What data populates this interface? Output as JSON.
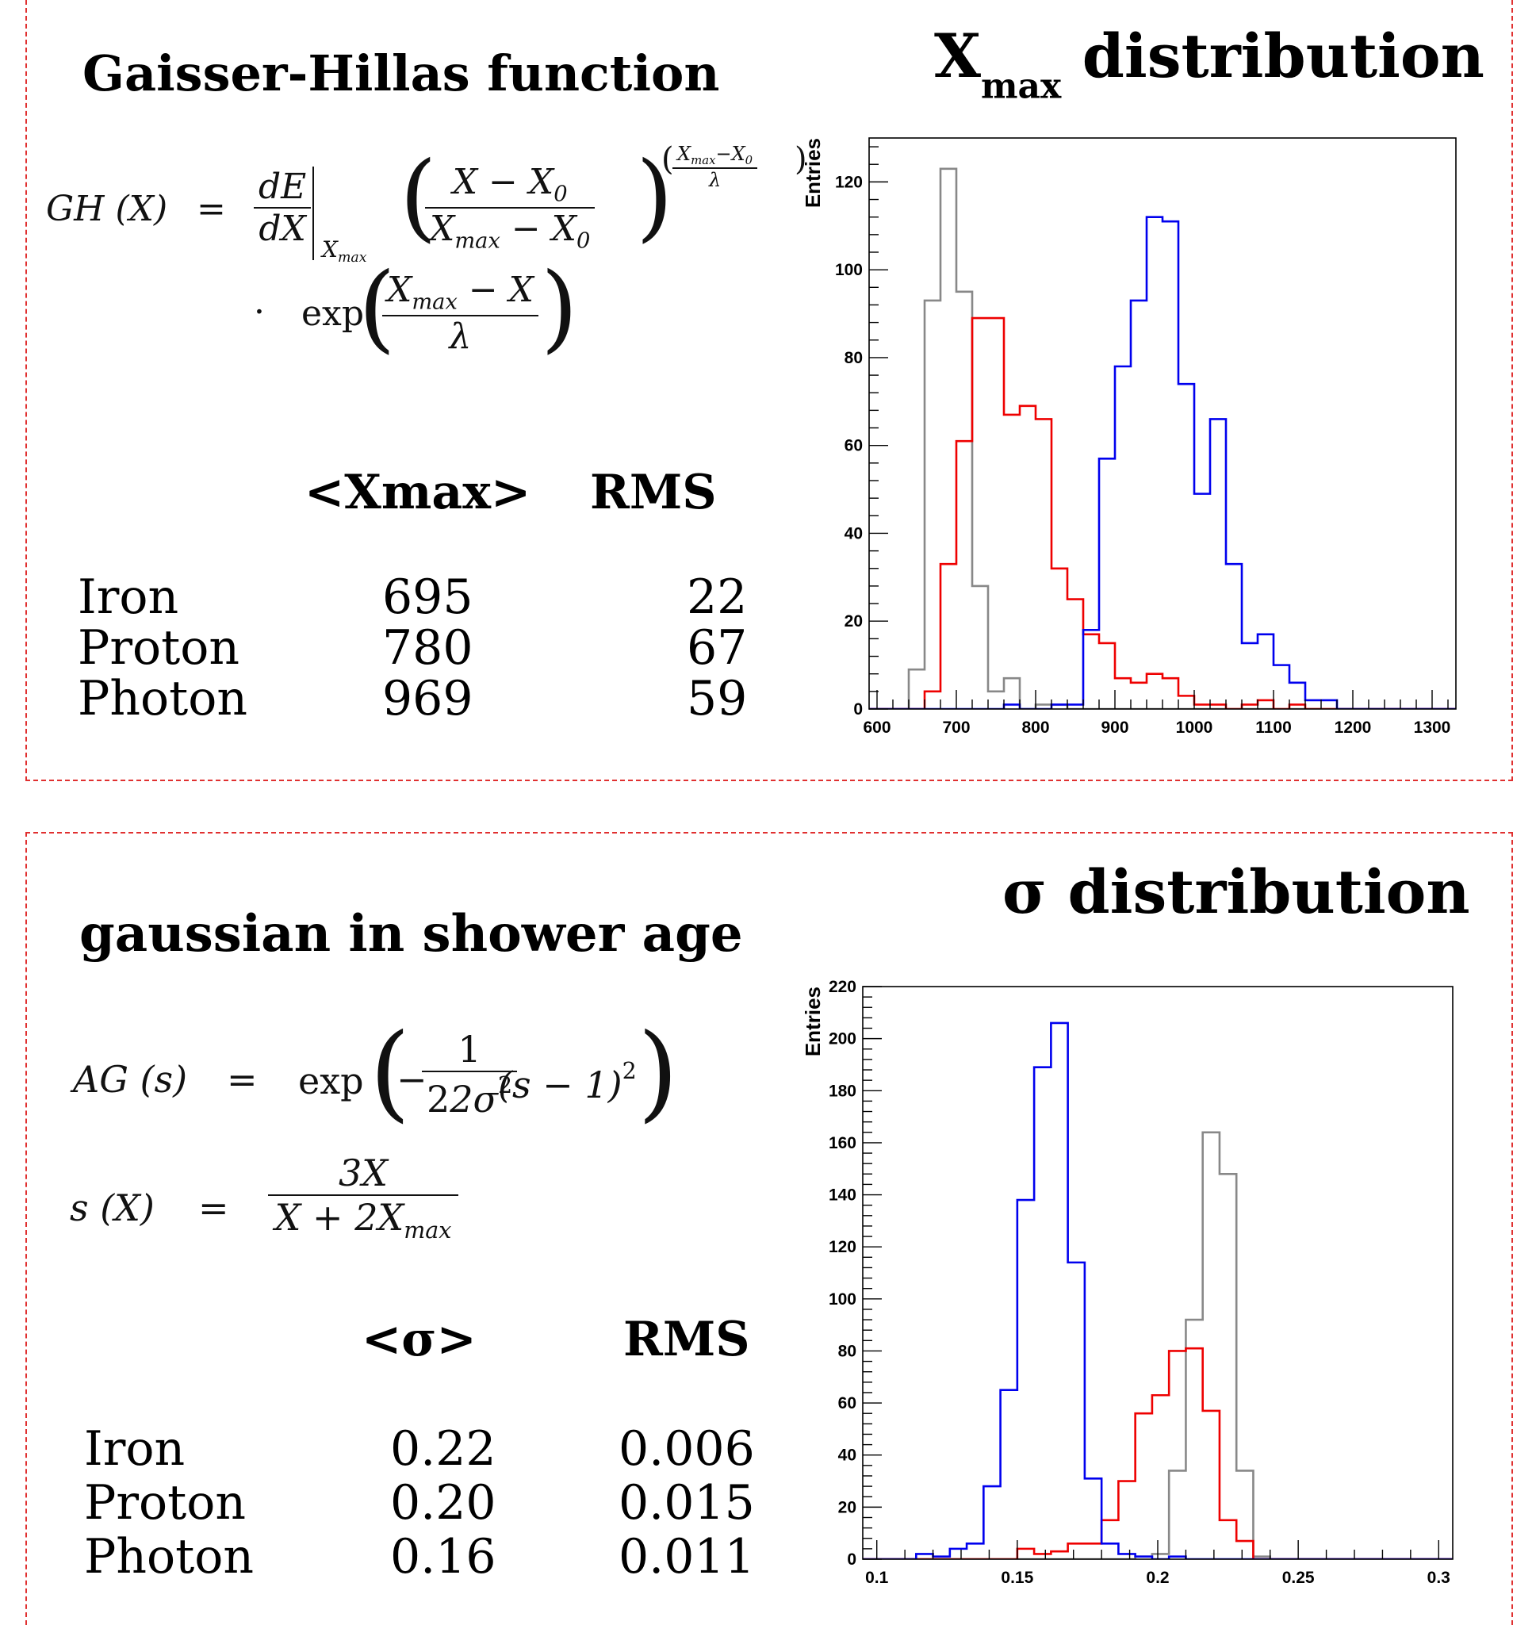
{
  "top": {
    "title": "Gaisser-Hillas function",
    "equation": {
      "lhs": "GH (X)",
      "eq": "=",
      "dE": "dE",
      "dX": "dX",
      "eval_sub": "X",
      "eval_sub2": "max",
      "num": "X − X",
      "num_sub": "0",
      "den": "X",
      "den_sub": "max",
      "den_tail": " − X",
      "den_tail_sub": "0",
      "exp_num": "X",
      "exp_num_sub": "max",
      "exp_num_tail": "−X",
      "exp_num_tail_sub": "0",
      "exp_den": "λ",
      "dot": "·",
      "exp": "exp",
      "e_num": "X",
      "e_num_sub": "max",
      "e_num_tail": " − X",
      "e_den": "λ"
    },
    "table": {
      "col1": "<Xmax>",
      "col2": "RMS",
      "rows": [
        {
          "name": "Iron",
          "mean": "695",
          "rms": "22"
        },
        {
          "name": "Proton",
          "mean": "780",
          "rms": "67"
        },
        {
          "name": "Photon",
          "mean": "969",
          "rms": "59"
        }
      ]
    },
    "chart_title_main": "X",
    "chart_title_sub": "max",
    "chart_title_tail": " distribution"
  },
  "bottom": {
    "title": "gaussian in shower age",
    "eq1": {
      "lhs": "AG (s)",
      "eq": "=",
      "exp": "exp",
      "minus": "−",
      "num": "1",
      "den": "2σ",
      "den_sup": "2",
      "tail": "(s − 1)",
      "tail_sup": "2"
    },
    "eq2": {
      "lhs": "s (X)",
      "eq": "=",
      "num": "3X",
      "den": "X + 2X",
      "den_sub": "max"
    },
    "table": {
      "col1": "<σ>",
      "col2": "RMS",
      "rows": [
        {
          "name": "Iron",
          "mean": "0.22",
          "rms": "0.006"
        },
        {
          "name": "Proton",
          "mean": "0.20",
          "rms": "0.015"
        },
        {
          "name": "Photon",
          "mean": "0.16",
          "rms": "0.011"
        }
      ]
    },
    "chart_title": "σ distribution"
  },
  "chart_data": [
    {
      "type": "histogram",
      "ylabel": "Entries",
      "xlim": [
        590,
        1330
      ],
      "ylim": [
        0,
        130
      ],
      "xticks": [
        600,
        700,
        800,
        900,
        1000,
        1100,
        1200,
        1300
      ],
      "yticks": [
        0,
        20,
        40,
        60,
        80,
        100,
        120
      ],
      "bin_edges": [
        580,
        600,
        620,
        640,
        660,
        680,
        700,
        720,
        740,
        760,
        780,
        800,
        820,
        840,
        860,
        880,
        900,
        920,
        940,
        960,
        980,
        1000,
        1020,
        1040,
        1060,
        1080,
        1100,
        1120,
        1140,
        1160,
        1180,
        1200,
        1220,
        1240,
        1260,
        1280,
        1300,
        1320,
        1340
      ],
      "series": [
        {
          "color": "#888888",
          "values": [
            0,
            0,
            0,
            9,
            93,
            123,
            95,
            28,
            4,
            7,
            0,
            1,
            1,
            0,
            0,
            0,
            0,
            0,
            0,
            0,
            0,
            0,
            0,
            0,
            0,
            0,
            0,
            0,
            0,
            0,
            0,
            0,
            0,
            0,
            0,
            0,
            0,
            0
          ]
        },
        {
          "color": "#ee0000",
          "values": [
            0,
            0,
            0,
            0,
            4,
            33,
            61,
            89,
            89,
            67,
            69,
            66,
            32,
            25,
            17,
            15,
            7,
            6,
            8,
            7,
            3,
            1,
            1,
            0,
            1,
            2,
            0,
            1,
            0,
            0,
            0,
            0,
            0,
            0,
            0,
            0,
            0,
            0
          ]
        },
        {
          "color": "#0000ee",
          "values": [
            0,
            0,
            0,
            0,
            0,
            0,
            0,
            0,
            0,
            1,
            0,
            0,
            1,
            1,
            18,
            57,
            78,
            93,
            112,
            111,
            74,
            49,
            66,
            33,
            15,
            17,
            10,
            6,
            2,
            2,
            0,
            0,
            0,
            0,
            0,
            0,
            0,
            0
          ]
        }
      ]
    },
    {
      "type": "histogram",
      "ylabel": "Entries",
      "xlim": [
        0.095,
        0.305
      ],
      "ylim": [
        0,
        220
      ],
      "xticks": [
        0.1,
        0.15,
        0.2,
        0.25,
        0.3
      ],
      "xticklabels": [
        "0.1",
        "0.15",
        "0.2",
        "0.25",
        "0.3"
      ],
      "yticks": [
        0,
        20,
        40,
        60,
        80,
        100,
        120,
        140,
        160,
        180,
        200,
        220
      ],
      "bin_edges": [
        0.09,
        0.096,
        0.102,
        0.108,
        0.114,
        0.12,
        0.126,
        0.132,
        0.138,
        0.144,
        0.15,
        0.156,
        0.162,
        0.168,
        0.174,
        0.18,
        0.186,
        0.192,
        0.198,
        0.204,
        0.21,
        0.216,
        0.222,
        0.228,
        0.234,
        0.24,
        0.246,
        0.252,
        0.258,
        0.264,
        0.27,
        0.276,
        0.282,
        0.288,
        0.294,
        0.3,
        0.306
      ],
      "series": [
        {
          "color": "#888888",
          "values": [
            0,
            0,
            0,
            0,
            0,
            0,
            0,
            0,
            0,
            0,
            0,
            0,
            0,
            0,
            0,
            0,
            0,
            1,
            2,
            34,
            92,
            164,
            148,
            34,
            1,
            0,
            0,
            0,
            0,
            0,
            0,
            0,
            0,
            0,
            0,
            0
          ]
        },
        {
          "color": "#ee0000",
          "values": [
            0,
            0,
            0,
            0,
            0,
            0,
            0,
            0,
            0,
            0,
            4,
            2,
            3,
            6,
            6,
            15,
            30,
            56,
            63,
            80,
            81,
            57,
            15,
            7,
            0,
            0,
            0,
            0,
            0,
            0,
            0,
            0,
            0,
            0,
            0,
            0
          ]
        },
        {
          "color": "#0000ee",
          "values": [
            0,
            0,
            0,
            0,
            2,
            1,
            4,
            6,
            28,
            65,
            138,
            189,
            206,
            114,
            31,
            6,
            2,
            1,
            0,
            1,
            0,
            0,
            0,
            0,
            0,
            0,
            0,
            0,
            0,
            0,
            0,
            0,
            0,
            0,
            0,
            0
          ]
        }
      ]
    }
  ]
}
